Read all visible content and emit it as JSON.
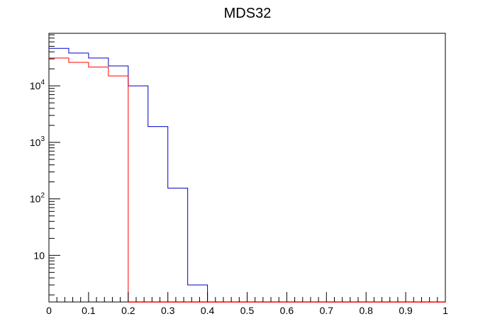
{
  "chart_data": {
    "type": "histogram",
    "title": "MDS32",
    "xlabel": "",
    "ylabel": "",
    "xlim": [
      0,
      1
    ],
    "ylim": [
      1.5,
      85000
    ],
    "y_scale": "log",
    "grid": false,
    "legend": "none",
    "bin_width": 0.05,
    "x_tick_labels": [
      "0",
      "0.1",
      "0.2",
      "0.3",
      "0.4",
      "0.5",
      "0.6",
      "0.7",
      "0.8",
      "0.9",
      "1"
    ],
    "y_tick_labels": [
      {
        "value": 10,
        "base": "10",
        "exp": ""
      },
      {
        "value": 100,
        "base": "10",
        "exp": "2"
      },
      {
        "value": 1000,
        "base": "10",
        "exp": "3"
      },
      {
        "value": 10000,
        "base": "10",
        "exp": "4"
      }
    ],
    "series": [
      {
        "color": "#0000cc",
        "edges": [
          0,
          0.05,
          0.1,
          0.15,
          0.2,
          0.25,
          0.3,
          0.35,
          0.4
        ],
        "values": [
          46000,
          38000,
          31000,
          22500,
          10000,
          1900,
          155,
          3
        ]
      },
      {
        "color": "#ff0000",
        "edges": [
          0,
          0.05,
          0.1,
          0.15,
          0.2
        ],
        "values": [
          31000,
          26000,
          21500,
          15000
        ]
      }
    ]
  }
}
